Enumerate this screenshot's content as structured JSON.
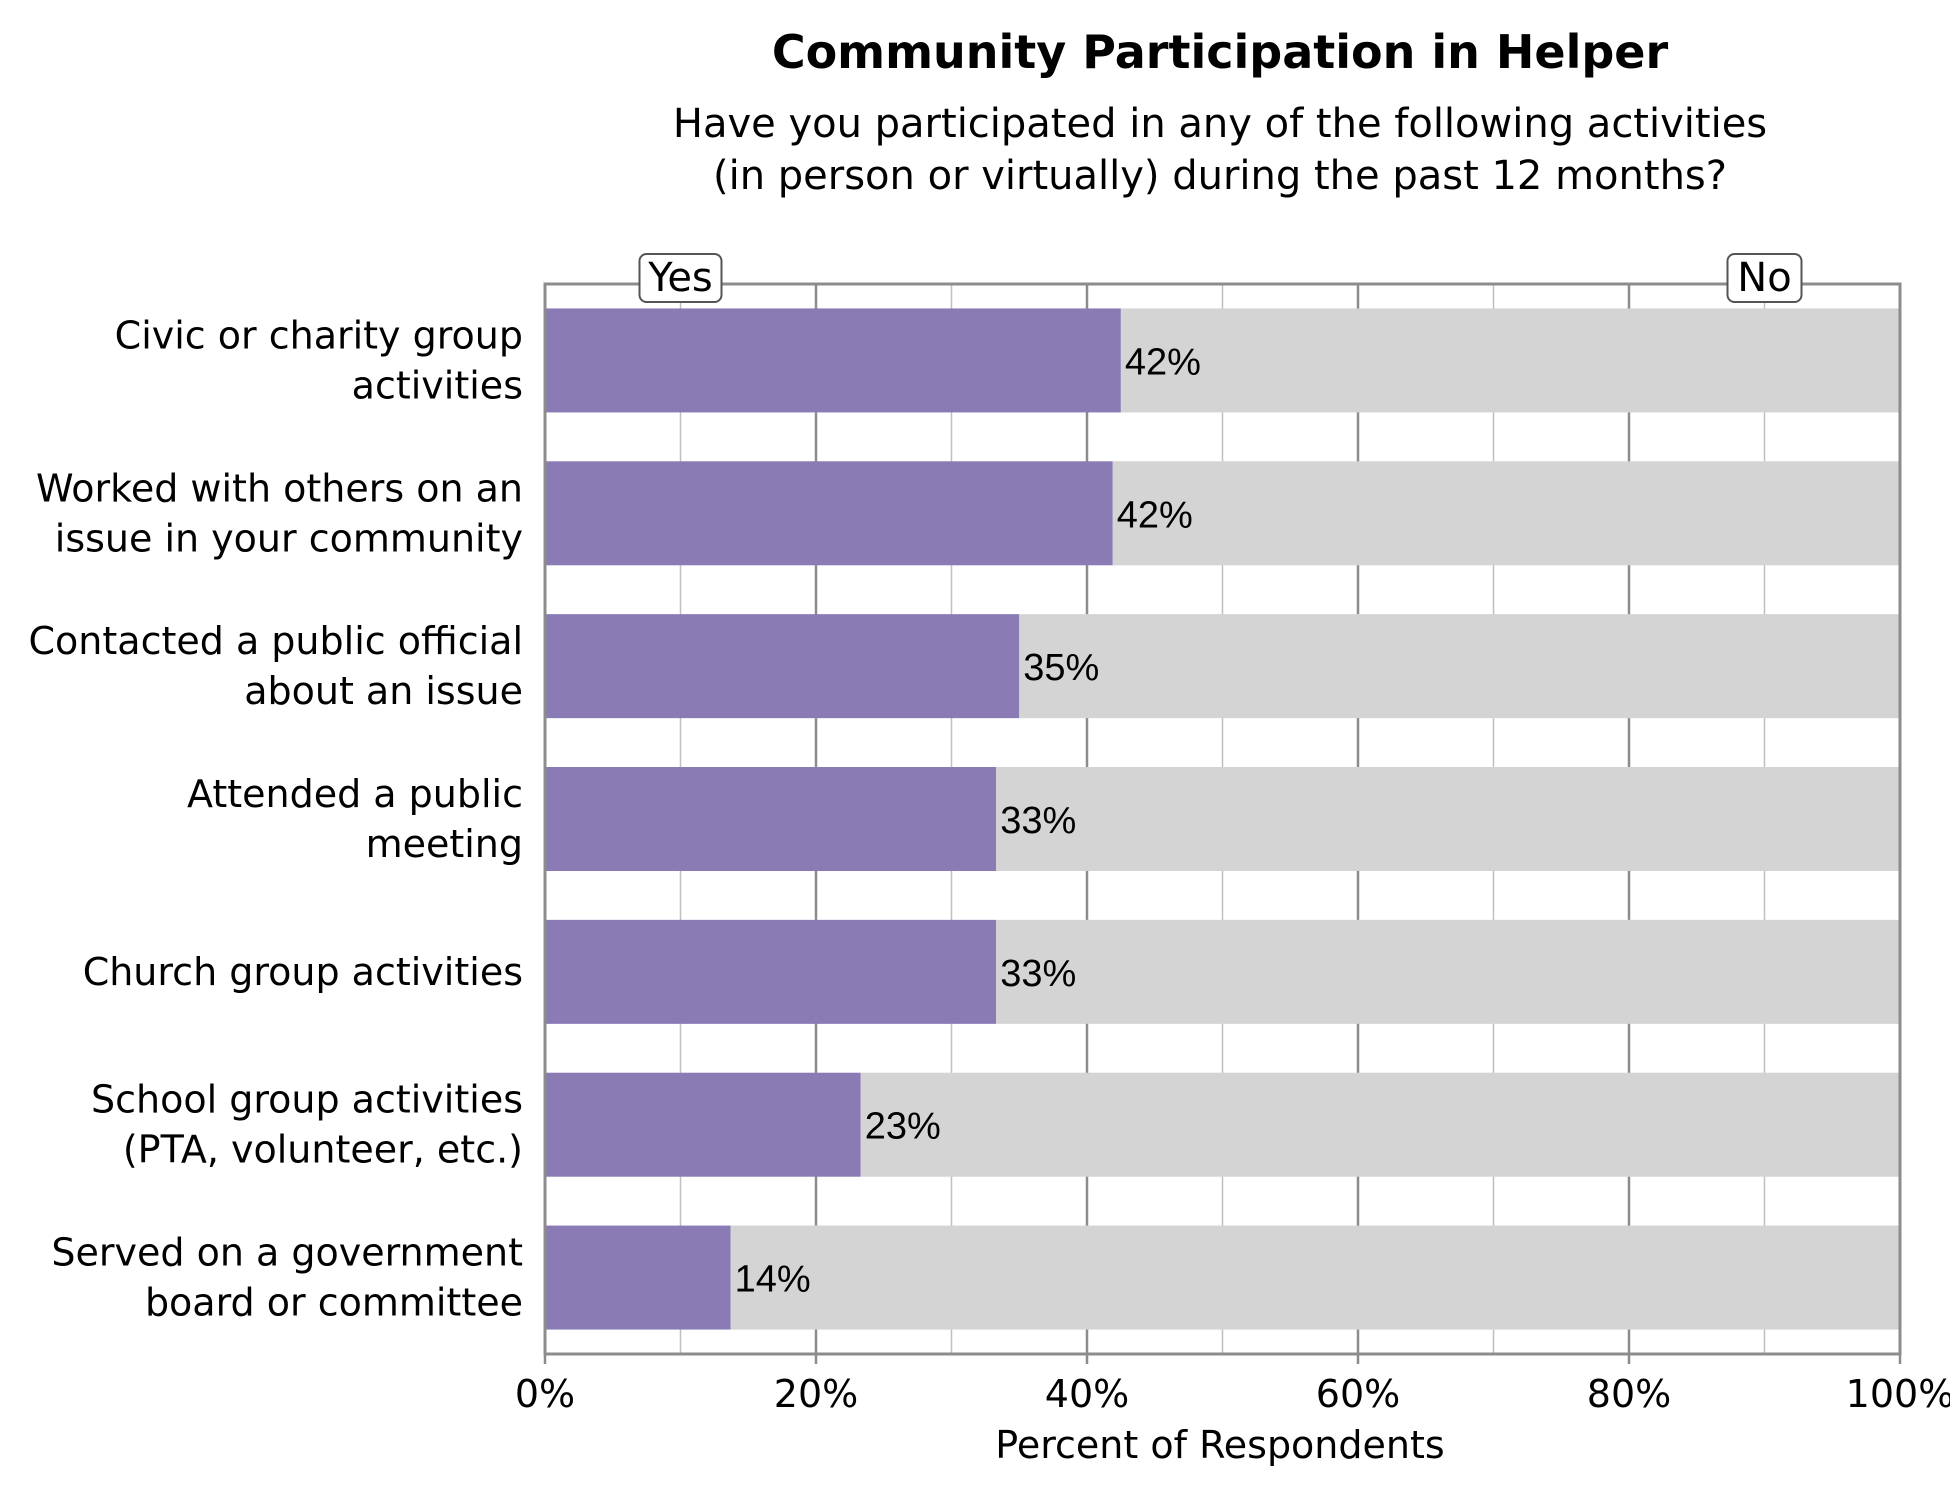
{
  "chart_data": {
    "type": "bar",
    "orientation": "horizontal",
    "stacked": true,
    "title": "Community Participation in Helper",
    "subtitle": [
      "Have you participated in any of the following activities",
      "(in person or virtually) during the past 12 months?"
    ],
    "xlabel": "Percent of Respondents",
    "ylabel": "",
    "xlim": [
      0,
      100
    ],
    "xticks": [
      "0%",
      "20%",
      "40%",
      "60%",
      "80%",
      "100%"
    ],
    "grid": true,
    "categories": [
      [
        "Civic or charity group",
        "activities"
      ],
      [
        "Worked with others on an",
        "issue in your community"
      ],
      [
        "Contacted a public official",
        "about an issue"
      ],
      [
        "Attended a public",
        "meeting"
      ],
      [
        "Church group activities"
      ],
      [
        "School group activities",
        "(PTA, volunteer, etc.)"
      ],
      [
        "Served on a government",
        "board or committee"
      ]
    ],
    "series": [
      {
        "name": "Yes",
        "color": "#8a7bb5",
        "values": [
          42.5,
          41.9,
          35.0,
          33.3,
          33.3,
          23.3,
          13.7
        ],
        "labels": [
          "42%",
          "42%",
          "35%",
          "33%",
          "33%",
          "23%",
          "14%"
        ]
      },
      {
        "name": "No",
        "color": "#d4d4d4",
        "values": [
          57.5,
          58.1,
          65.0,
          66.7,
          66.7,
          76.7,
          86.3
        ]
      }
    ],
    "legend_placement": "top, inside plot: Yes at left, No at right"
  }
}
